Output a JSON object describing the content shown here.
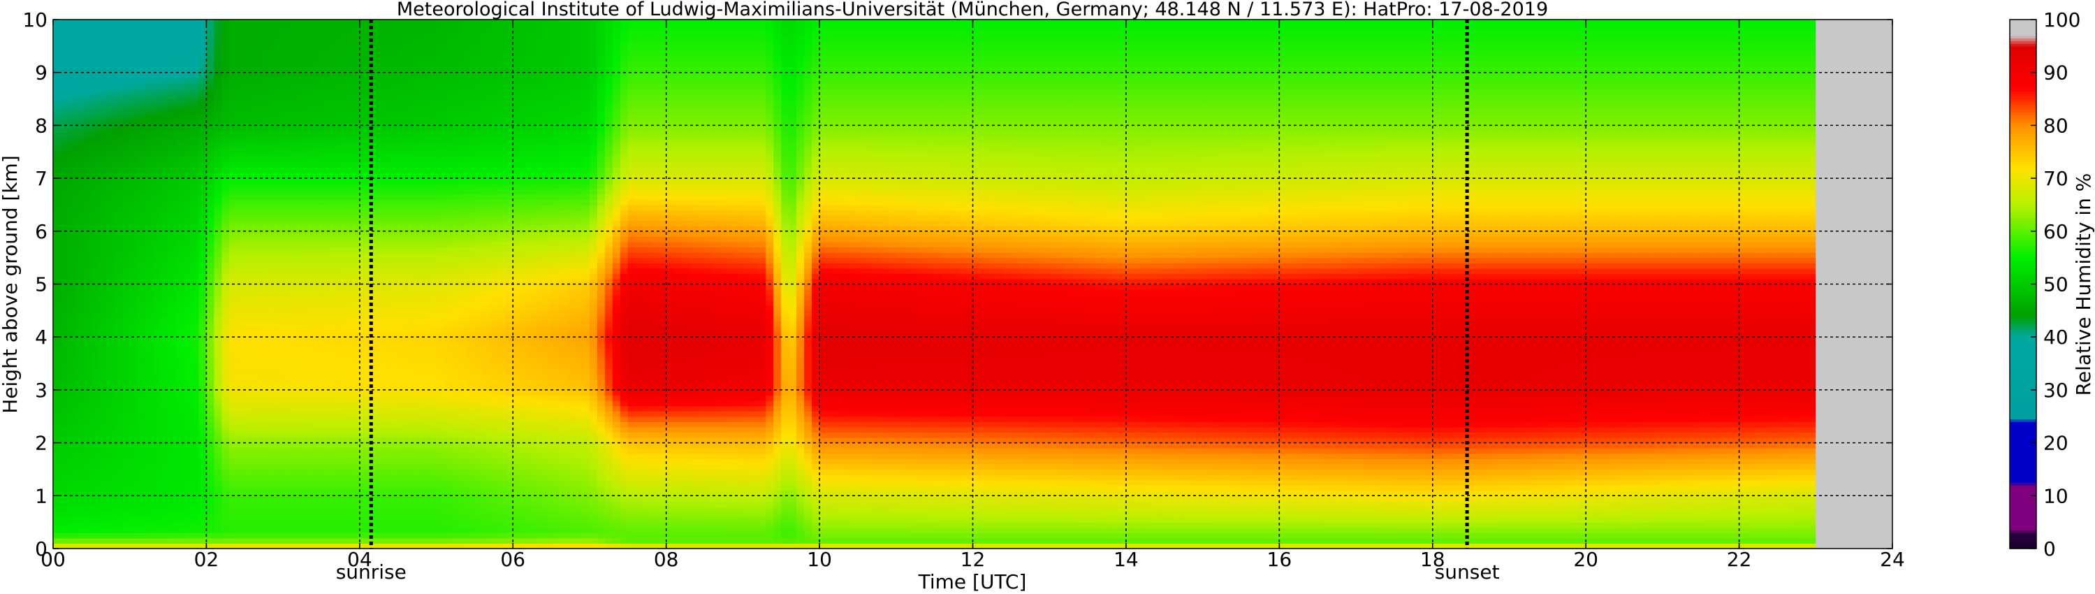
{
  "chart_data": {
    "type": "heatmap",
    "title": "Meteorological Institute of Ludwig-Maximilians-Universität (München, Germany; 48.148 N / 11.573 E):    HatPro: 17-08-2019",
    "xlabel": "Time [UTC]",
    "ylabel": "Height above ground [km]",
    "xlim": [
      0,
      24
    ],
    "ylim": [
      0,
      10
    ],
    "x_ticks": [
      "00",
      "02",
      "04",
      "06",
      "08",
      "10",
      "12",
      "14",
      "16",
      "18",
      "20",
      "22",
      "24"
    ],
    "y_ticks": [
      "0",
      "1",
      "2",
      "3",
      "4",
      "5",
      "6",
      "7",
      "8",
      "9",
      "10"
    ],
    "grid": true,
    "data_end_hour": 23.0,
    "events": [
      {
        "label": "sunrise",
        "hour": 4.15
      },
      {
        "label": "sunset",
        "hour": 18.45
      }
    ],
    "colorbar": {
      "label": "Relative Humidity in %",
      "ticks": [
        "0",
        "10",
        "20",
        "30",
        "40",
        "50",
        "60",
        "70",
        "80",
        "90",
        "100"
      ],
      "stops": [
        {
          "value": 0,
          "color": "#1a0030"
        },
        {
          "value": 3,
          "color": "#2a0040"
        },
        {
          "value": 3.5,
          "color": "#800080"
        },
        {
          "value": 12,
          "color": "#800080"
        },
        {
          "value": 12.5,
          "color": "#0000c8"
        },
        {
          "value": 24,
          "color": "#0000c8"
        },
        {
          "value": 24.5,
          "color": "#00a0a0"
        },
        {
          "value": 40,
          "color": "#00a8a0"
        },
        {
          "value": 44,
          "color": "#00a000"
        },
        {
          "value": 55,
          "color": "#00ee00"
        },
        {
          "value": 65,
          "color": "#b8f000"
        },
        {
          "value": 72,
          "color": "#ffe000"
        },
        {
          "value": 80,
          "color": "#ff9000"
        },
        {
          "value": 87,
          "color": "#ff0000"
        },
        {
          "value": 95,
          "color": "#e00000"
        },
        {
          "value": 97,
          "color": "#c8c8c8"
        },
        {
          "value": 100,
          "color": "#c8c8c8"
        }
      ],
      "missing_color": "#c8c8c8"
    },
    "rh_profiles": [
      {
        "hour": 0.0,
        "heights_km": [
          0,
          0.12,
          0.3,
          1,
          2,
          3,
          4,
          5,
          6,
          7,
          8,
          9,
          10
        ],
        "rh": [
          72,
          62,
          55,
          52,
          50,
          48,
          47,
          46,
          46,
          45,
          42,
          38,
          36
        ]
      },
      {
        "hour": 1.9,
        "heights_km": [
          0,
          0.12,
          0.3,
          1,
          2,
          3,
          4,
          5,
          6,
          7,
          8,
          9,
          10
        ],
        "rh": [
          72,
          62,
          56,
          54,
          54,
          55,
          56,
          54,
          52,
          50,
          46,
          40,
          38
        ]
      },
      {
        "hour": 2.3,
        "heights_km": [
          0,
          0.12,
          0.3,
          1,
          2,
          3,
          4,
          5,
          6,
          7,
          8,
          9,
          10
        ],
        "rh": [
          75,
          62,
          57,
          58,
          63,
          71,
          72,
          68,
          62,
          55,
          48,
          46,
          46
        ]
      },
      {
        "hour": 5.0,
        "heights_km": [
          0,
          0.12,
          0.3,
          1,
          2,
          3,
          4,
          5,
          6,
          7,
          8,
          9,
          10
        ],
        "rh": [
          75,
          62,
          57,
          58,
          63,
          72,
          73,
          69,
          62,
          55,
          50,
          48,
          47
        ]
      },
      {
        "hour": 7.0,
        "heights_km": [
          0,
          0.12,
          0.3,
          1,
          2,
          3,
          4,
          5,
          6,
          7,
          8,
          9,
          10
        ],
        "rh": [
          78,
          64,
          59,
          62,
          66,
          75,
          78,
          74,
          64,
          56,
          52,
          50,
          50
        ]
      },
      {
        "hour": 7.5,
        "heights_km": [
          0,
          0.12,
          0.3,
          1,
          2,
          3,
          4,
          5,
          6,
          7,
          8,
          9,
          10
        ],
        "rh": [
          74,
          60,
          60,
          65,
          75,
          92,
          95,
          90,
          80,
          68,
          62,
          58,
          55
        ]
      },
      {
        "hour": 9.3,
        "heights_km": [
          0,
          0.12,
          0.3,
          1,
          2,
          3,
          4,
          5,
          6,
          7,
          8,
          9,
          10
        ],
        "rh": [
          74,
          60,
          60,
          66,
          76,
          90,
          93,
          88,
          78,
          68,
          62,
          58,
          55
        ]
      },
      {
        "hour": 9.6,
        "heights_km": [
          0,
          0.12,
          0.3,
          1,
          2,
          3,
          4,
          5,
          6,
          7,
          8,
          9,
          10
        ],
        "rh": [
          74,
          60,
          58,
          62,
          70,
          75,
          72,
          66,
          62,
          58,
          56,
          54,
          52
        ]
      },
      {
        "hour": 10.0,
        "heights_km": [
          0,
          0.12,
          0.3,
          1,
          2,
          3,
          4,
          5,
          6,
          7,
          8,
          9,
          10
        ],
        "rh": [
          74,
          60,
          62,
          68,
          80,
          92,
          94,
          90,
          78,
          68,
          62,
          58,
          55
        ]
      },
      {
        "hour": 14.0,
        "heights_km": [
          0,
          0.12,
          0.3,
          1,
          2,
          3,
          4,
          5,
          6,
          7,
          8,
          9,
          10
        ],
        "rh": [
          74,
          60,
          62,
          70,
          82,
          92,
          93,
          86,
          74,
          66,
          62,
          58,
          55
        ]
      },
      {
        "hour": 18.0,
        "heights_km": [
          0,
          0.12,
          0.3,
          1,
          2,
          3,
          4,
          5,
          6,
          7,
          8,
          9,
          10
        ],
        "rh": [
          74,
          60,
          62,
          72,
          84,
          93,
          93,
          88,
          76,
          68,
          62,
          58,
          55
        ]
      },
      {
        "hour": 22.9,
        "heights_km": [
          0,
          0.12,
          0.3,
          1,
          2,
          3,
          4,
          5,
          6,
          7,
          8,
          9,
          10
        ],
        "rh": [
          74,
          60,
          62,
          68,
          82,
          92,
          93,
          88,
          76,
          68,
          62,
          58,
          55
        ]
      }
    ]
  }
}
